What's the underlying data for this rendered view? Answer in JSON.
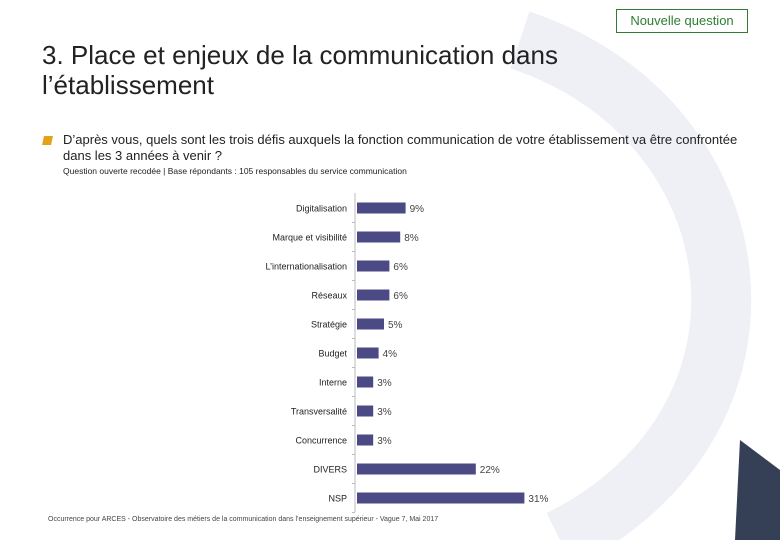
{
  "badge": "Nouvelle question",
  "title": "3. Place et enjeux de la communication dans l’établissement",
  "question": "D’après vous, quels sont les trois défis auxquels la fonction communication de votre établissement va être confrontée dans les 3 années à venir ?",
  "subtitle": "Question ouverte recodée | Base répondants : 105 responsables du service communication",
  "source": "Occurrence pour ARCES - Observatoire des métiers de la communication dans l’enseignement supérieur - Vague 7, Mai 2017",
  "colors": {
    "bar": "#4b4a85",
    "accent": "#e3a21a",
    "badge_border": "#2e7d32"
  },
  "chart_data": {
    "type": "bar",
    "orientation": "horizontal",
    "categories": [
      "Digitalisation",
      "Marque et visibilité",
      "L’internationalisation",
      "Réseaux",
      "Stratégie",
      "Budget",
      "Interne",
      "Transversalité",
      "Concurrence",
      "DIVERS",
      "NSP"
    ],
    "values": [
      9,
      8,
      6,
      6,
      5,
      4,
      3,
      3,
      3,
      22,
      31
    ],
    "value_labels": [
      "9%",
      "8%",
      "6%",
      "6%",
      "5%",
      "4%",
      "3%",
      "3%",
      "3%",
      "22%",
      "31%"
    ],
    "unit": "%",
    "xlim": [
      0,
      31
    ],
    "grid": false,
    "legend": "none"
  }
}
